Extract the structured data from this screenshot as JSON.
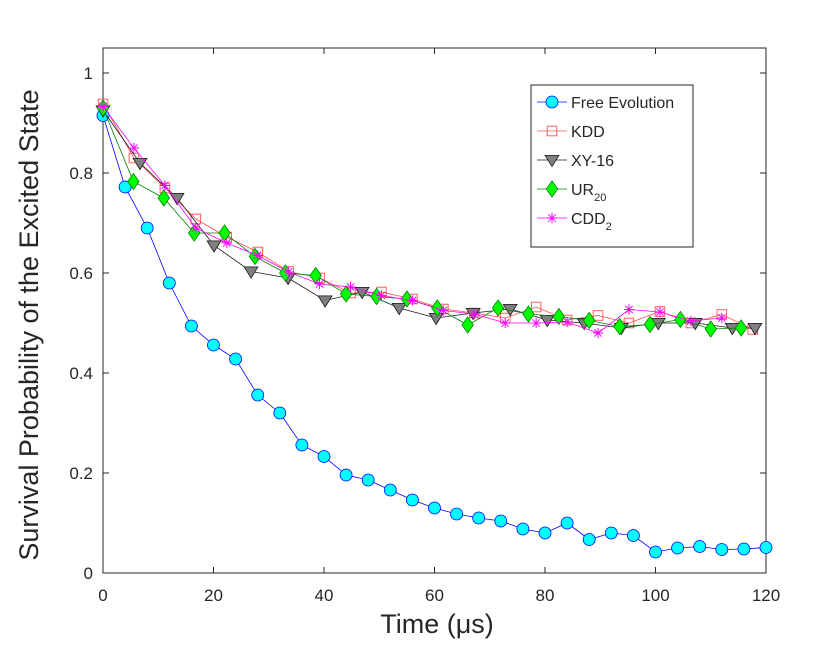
{
  "chart_data": {
    "type": "line",
    "xlabel": "Time (μs)",
    "ylabel": "Survival Probability of the Excited State",
    "xlim": [
      0,
      120
    ],
    "ylim": [
      0,
      1.05
    ],
    "xticks": [
      0,
      20,
      40,
      60,
      80,
      100,
      120
    ],
    "xtick_labels": [
      "0",
      "20",
      "40",
      "60",
      "80",
      "100",
      "120"
    ],
    "yticks": [
      0,
      0.2,
      0.4,
      0.6,
      0.8,
      1
    ],
    "ytick_labels": [
      "0",
      "0.2",
      "0.4",
      "0.6",
      "0.8",
      "1"
    ],
    "grid": false,
    "legend_position": "top-right",
    "series": [
      {
        "key": "free",
        "name": "Free Evolution",
        "name_main": "Free Evolution",
        "name_sub": "",
        "color": "#0000ff",
        "marker": "circle",
        "marker_fill": "#00ffff",
        "x": [
          0,
          4,
          8,
          12,
          16,
          20,
          24,
          28,
          32,
          36,
          40,
          44,
          48,
          52,
          56,
          60,
          64,
          68,
          72,
          76,
          80,
          84,
          88,
          92,
          96,
          100,
          104,
          108,
          112,
          116,
          120
        ],
        "y": [
          0.915,
          0.772,
          0.69,
          0.58,
          0.494,
          0.456,
          0.428,
          0.356,
          0.32,
          0.256,
          0.233,
          0.196,
          0.186,
          0.166,
          0.146,
          0.13,
          0.118,
          0.11,
          0.104,
          0.088,
          0.08,
          0.1,
          0.067,
          0.08,
          0.075,
          0.042,
          0.05,
          0.053,
          0.047,
          0.048,
          0.051
        ]
      },
      {
        "key": "kdd",
        "name": "KDD",
        "name_main": "KDD",
        "name_sub": "",
        "color": "#ff4d4d",
        "marker": "square",
        "marker_fill": "none",
        "x": [
          0,
          5.6,
          11.2,
          16.8,
          22.4,
          28,
          33.6,
          39.2,
          44.8,
          50.4,
          56,
          61.6,
          67.2,
          72.8,
          78.4,
          84,
          89.6,
          95.2,
          100.8,
          106.4,
          112,
          117.6
        ],
        "y": [
          0.938,
          0.83,
          0.77,
          0.708,
          0.672,
          0.642,
          0.603,
          0.59,
          0.56,
          0.562,
          0.548,
          0.528,
          0.52,
          0.51,
          0.532,
          0.506,
          0.515,
          0.5,
          0.523,
          0.5,
          0.517,
          0.487
        ]
      },
      {
        "key": "xy16",
        "name": "XY-16",
        "name_main": "XY-16",
        "name_sub": "",
        "color": "#1a1a1a",
        "marker": "triangle-down",
        "marker_fill": "#808080",
        "x": [
          0,
          6.7,
          13.4,
          20.1,
          26.8,
          33.5,
          40.2,
          46.9,
          53.6,
          60.3,
          67,
          73.7,
          80.4,
          87.1,
          93.8,
          100.5,
          107.2,
          113.9,
          118
        ],
        "y": [
          0.925,
          0.82,
          0.75,
          0.655,
          0.603,
          0.59,
          0.545,
          0.562,
          0.53,
          0.51,
          0.52,
          0.528,
          0.506,
          0.5,
          0.49,
          0.5,
          0.5,
          0.49,
          0.49
        ]
      },
      {
        "key": "ur20",
        "name": "UR20",
        "name_main": "UR",
        "name_sub": "20",
        "color": "#008000",
        "marker": "diamond",
        "marker_fill": "#00ff00",
        "x": [
          0,
          5.5,
          11,
          16.5,
          22,
          27.5,
          33,
          38.5,
          44,
          49.5,
          55,
          60.5,
          66,
          71.5,
          77,
          82.5,
          88,
          93.5,
          99,
          104.5,
          110,
          115.5
        ],
        "y": [
          0.93,
          0.783,
          0.75,
          0.68,
          0.68,
          0.633,
          0.6,
          0.595,
          0.558,
          0.553,
          0.548,
          0.53,
          0.496,
          0.53,
          0.518,
          0.513,
          0.505,
          0.493,
          0.497,
          0.507,
          0.488,
          0.49
        ]
      },
      {
        "key": "cdd2",
        "name": "CDD2",
        "name_main": "CDD",
        "name_sub": "2",
        "color": "#ff00ff",
        "marker": "star",
        "marker_fill": "none",
        "x": [
          0,
          5.6,
          11.2,
          16.8,
          22.4,
          28,
          33.6,
          39.2,
          44.8,
          50.4,
          56,
          61.6,
          67.2,
          72.8,
          78.4,
          84,
          89.6,
          95.2,
          100.8,
          106.4,
          112
        ],
        "y": [
          0.933,
          0.85,
          0.775,
          0.69,
          0.66,
          0.635,
          0.602,
          0.578,
          0.572,
          0.555,
          0.545,
          0.525,
          0.518,
          0.5,
          0.5,
          0.502,
          0.48,
          0.527,
          0.522,
          0.504,
          0.51
        ]
      }
    ]
  }
}
